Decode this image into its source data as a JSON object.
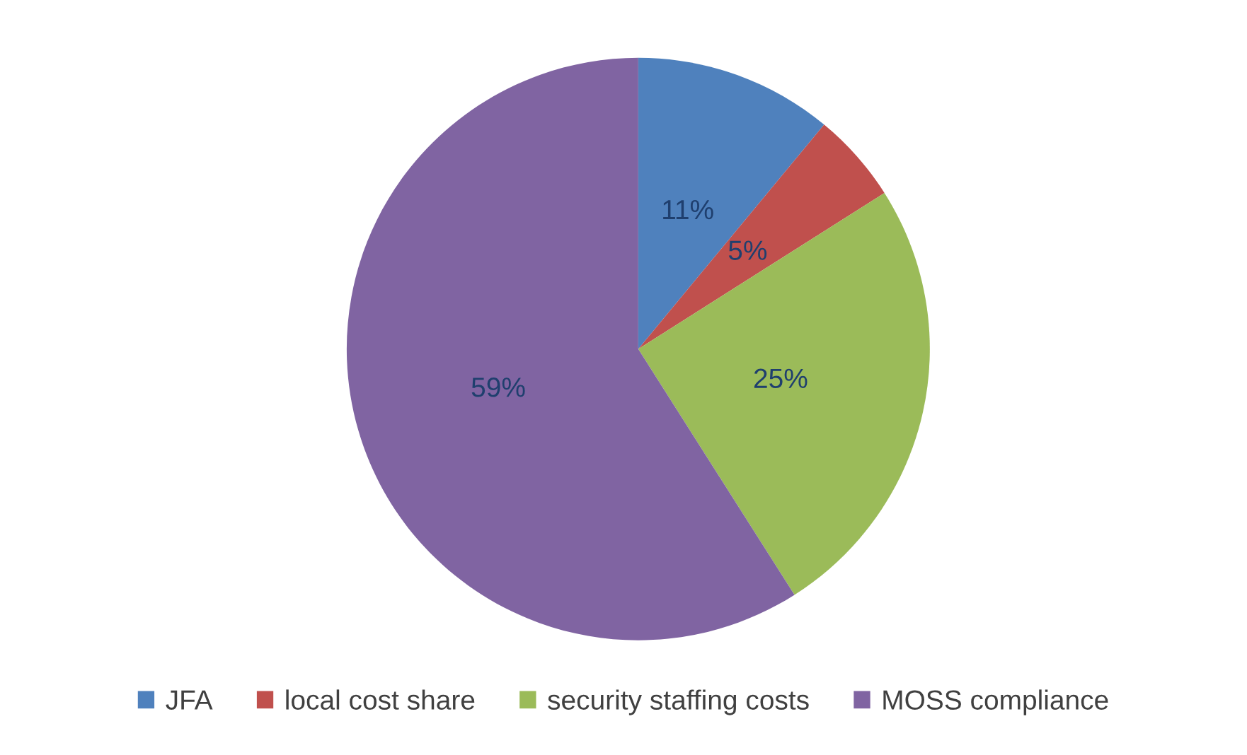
{
  "chart_data": {
    "type": "pie",
    "categories": [
      "JFA",
      "local cost share",
      "security staffing costs",
      "MOSS compliance"
    ],
    "values": [
      11,
      5,
      25,
      59
    ],
    "colors": [
      "#4f81bd",
      "#c0504d",
      "#9bbb59",
      "#8064a2"
    ],
    "value_labels": [
      "11%",
      "5%",
      "25%",
      "59%"
    ],
    "legend": "bottom"
  }
}
